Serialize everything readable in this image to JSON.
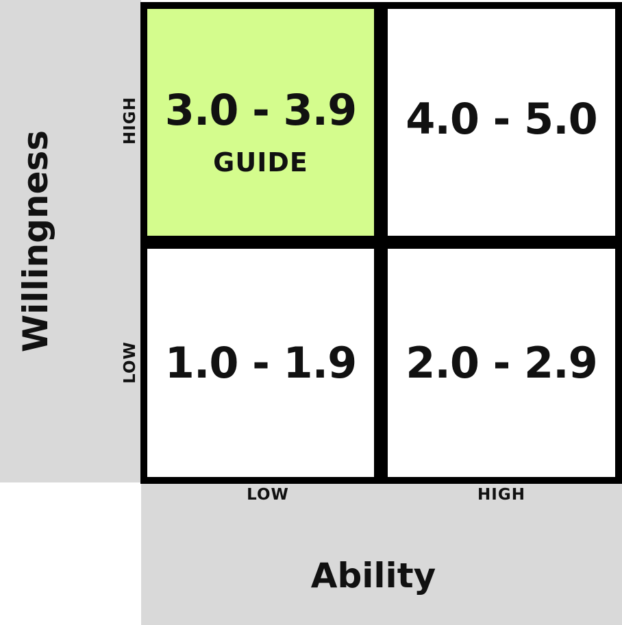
{
  "colors": {
    "panel_background": "#d9d9d9",
    "grid_line": "#000000",
    "highlight_cell": "#d4fc8d",
    "cell_background": "#ffffff"
  },
  "y_axis": {
    "title": "Willingness",
    "high_label": "HIGH",
    "low_label": "LOW"
  },
  "x_axis": {
    "title": "Ability",
    "low_label": "LOW",
    "high_label": "HIGH"
  },
  "quadrants": {
    "high_willingness_low_ability": {
      "range": "3.0 - 3.9",
      "label": "GUIDE",
      "highlighted": true
    },
    "high_willingness_high_ability": {
      "range": "4.0 - 5.0",
      "highlighted": false
    },
    "low_willingness_low_ability": {
      "range": "1.0 - 1.9",
      "highlighted": false
    },
    "low_willingness_high_ability": {
      "range": "2.0 - 2.9",
      "highlighted": false
    }
  }
}
